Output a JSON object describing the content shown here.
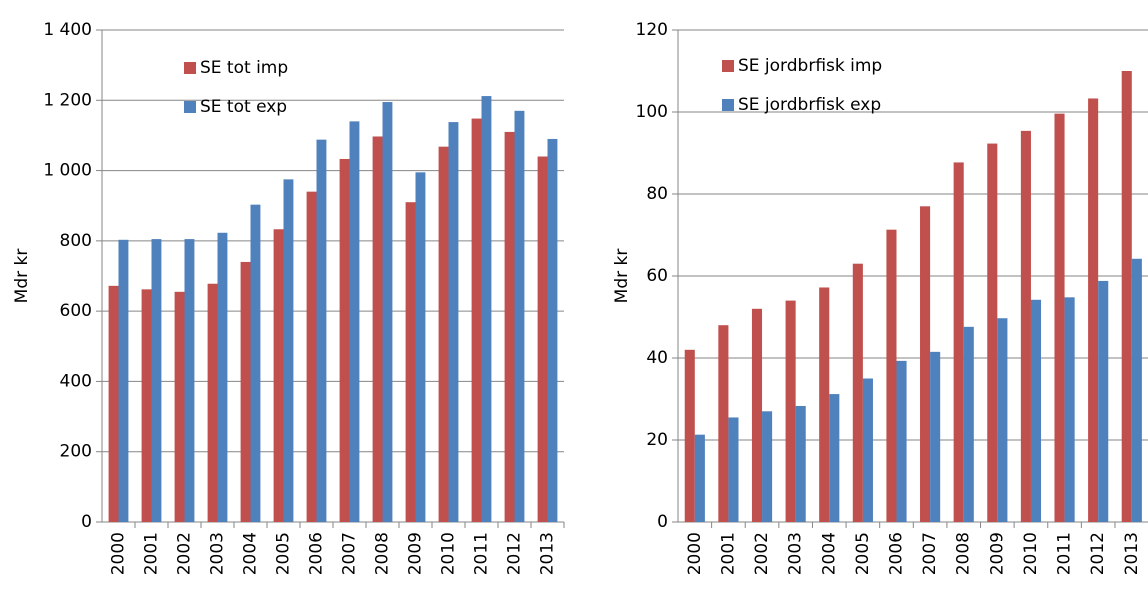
{
  "chart_data": [
    {
      "type": "bar",
      "y_label": "Mdr kr",
      "categories": [
        "2000",
        "2001",
        "2002",
        "2003",
        "2004",
        "2005",
        "2006",
        "2007",
        "2008",
        "2009",
        "2010",
        "2011",
        "2012",
        "2013"
      ],
      "series": [
        {
          "name": "SE tot imp",
          "color": "#c0504d",
          "values": [
            672,
            662,
            655,
            678,
            740,
            833,
            940,
            1033,
            1097,
            910,
            1068,
            1148,
            1110,
            1040
          ]
        },
        {
          "name": "SE tot exp",
          "color": "#4f81bd",
          "values": [
            803,
            805,
            805,
            823,
            903,
            975,
            1088,
            1140,
            1195,
            995,
            1138,
            1212,
            1170,
            1090
          ]
        }
      ],
      "ylim": [
        0,
        1400
      ],
      "yticks": [
        0,
        200,
        400,
        600,
        800,
        {
          "value": 1000,
          "label": "1 000"
        },
        {
          "value": 1200,
          "label": "1 200"
        },
        {
          "value": 1400,
          "label": "1 400"
        }
      ],
      "grid": true
    },
    {
      "type": "bar",
      "y_label": "Mdr kr",
      "categories": [
        "2000",
        "2001",
        "2002",
        "2003",
        "2004",
        "2005",
        "2006",
        "2007",
        "2008",
        "2009",
        "2010",
        "2011",
        "2012",
        "2013"
      ],
      "series": [
        {
          "name": "SE jordbrfisk imp",
          "color": "#c0504d",
          "values": [
            42,
            48,
            52,
            54,
            57.2,
            63,
            71.3,
            77,
            87.7,
            92.3,
            95.4,
            99.6,
            103.3,
            110
          ]
        },
        {
          "name": "SE jordbrfisk exp",
          "color": "#4f81bd",
          "values": [
            21.3,
            25.5,
            27,
            28.3,
            31.2,
            35,
            39.3,
            41.5,
            47.6,
            49.7,
            54.2,
            54.8,
            58.8,
            64.2
          ]
        }
      ],
      "ylim": [
        0,
        120
      ],
      "yticks": [
        0,
        20,
        40,
        60,
        80,
        100,
        120
      ],
      "grid": true
    }
  ]
}
